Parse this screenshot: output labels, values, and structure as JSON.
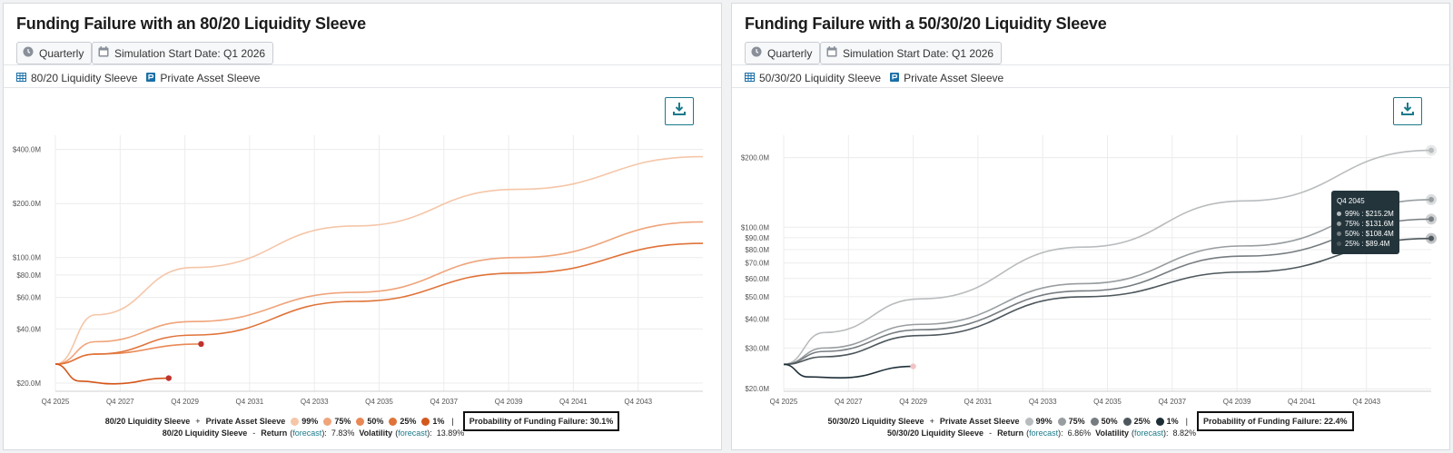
{
  "panels": [
    {
      "title": "Funding Failure with an 80/20 Liquidity Sleeve",
      "frequency": "Quarterly",
      "start_date": "Simulation Start Date: Q1 2026",
      "legend_items": [
        "80/20 Liquidity Sleeve",
        "Private Asset Sleeve"
      ],
      "bottom": {
        "sleeve": "80/20 Liquidity Sleeve",
        "plus": "+",
        "private": "Private Asset Sleeve",
        "pcts": [
          "99%",
          "75%",
          "50%",
          "25%",
          "1%"
        ],
        "pipe": "|",
        "prob": "Probability of Funding Failure: 30.1%",
        "dash": "-",
        "return_label": "Return",
        "forecast": "forecast",
        "return_value": "7.83%",
        "vol_label": "Volatility",
        "vol_value": "13.89%"
      },
      "colors": [
        "#f5c6a8",
        "#efa47a",
        "#e98855",
        "#e07339",
        "#d4571c"
      ],
      "dot_color": "#c0332d"
    },
    {
      "title": "Funding Failure with a 50/30/20 Liquidity Sleeve",
      "frequency": "Quarterly",
      "start_date": "Simulation Start Date: Q1 2026",
      "legend_items": [
        "50/30/20 Liquidity Sleeve",
        "Private Asset Sleeve"
      ],
      "bottom": {
        "sleeve": "50/30/20 Liquidity Sleeve",
        "plus": "+",
        "private": "Private Asset Sleeve",
        "pcts": [
          "99%",
          "75%",
          "50%",
          "25%",
          "1%"
        ],
        "pipe": "|",
        "prob": "Probability of Funding Failure: 22.4%",
        "dash": "-",
        "return_label": "Return",
        "forecast": "forecast",
        "return_value": "6.86%",
        "vol_label": "Volatility",
        "vol_value": "8.82%"
      },
      "colors": [
        "#b9bcbe",
        "#989da0",
        "#767c80",
        "#4d575c",
        "#1f2f38"
      ],
      "dot_color": "#f2c3c6",
      "tooltip": {
        "title": "Q4 2045",
        "rows": [
          "99% : $215.2M",
          "75% : $131.6M",
          "50% : $108.4M",
          "25% : $89.4M"
        ]
      }
    }
  ],
  "chart_data": [
    {
      "type": "line",
      "title": "Funding Failure with an 80/20 Liquidity Sleeve",
      "x_ticks": [
        "Q4 2025",
        "Q4 2027",
        "Q4 2029",
        "Q4 2031",
        "Q4 2033",
        "Q4 2035",
        "Q4 2037",
        "Q4 2039",
        "Q4 2041",
        "Q4 2043"
      ],
      "y_scale": "log",
      "y_ticks": [
        "$20.0M",
        "$40.0M",
        "$60.0M",
        "$80.0M",
        "$100.0M",
        "$200.0M",
        "$400.0M"
      ],
      "y_tick_values": [
        20,
        40,
        60,
        80,
        100,
        200,
        400
      ],
      "ylim": [
        18,
        480
      ],
      "series": [
        {
          "name": "99%",
          "x": [
            2025.75,
            2027,
            2030,
            2035,
            2040,
            2045.75
          ],
          "values": [
            25.5,
            48,
            88,
            150,
            240,
            365
          ]
        },
        {
          "name": "75%",
          "x": [
            2025.75,
            2027,
            2030,
            2035,
            2040,
            2045.75
          ],
          "values": [
            25.5,
            34,
            44,
            64,
            100,
            158
          ]
        },
        {
          "name": "50%",
          "x": [
            2025.75,
            2027,
            2030.25
          ],
          "values": [
            25.5,
            29,
            33
          ]
        },
        {
          "name": "25%",
          "x": [
            2025.75,
            2027,
            2030,
            2035,
            2040,
            2045.75
          ],
          "values": [
            25.5,
            29,
            37,
            57,
            82,
            120
          ]
        },
        {
          "name": "1%",
          "x": [
            2025.75,
            2026.5,
            2027.5,
            2029.25
          ],
          "values": [
            25.5,
            20.5,
            19.8,
            21.3
          ]
        }
      ],
      "failure_points": [
        {
          "x": 2030.25,
          "y": 33
        },
        {
          "x": 2029.25,
          "y": 21.3
        }
      ]
    },
    {
      "type": "line",
      "title": "Funding Failure with a 50/30/20 Liquidity Sleeve",
      "x_ticks": [
        "Q4 2025",
        "Q4 2027",
        "Q4 2029",
        "Q4 2031",
        "Q4 2033",
        "Q4 2035",
        "Q4 2037",
        "Q4 2039",
        "Q4 2041",
        "Q4 2043"
      ],
      "y_scale": "log",
      "y_ticks": [
        "$20.0M",
        "$30.0M",
        "$40.0M",
        "$50.0M",
        "$60.0M",
        "$70.0M",
        "$80.0M",
        "$90.0M",
        "$100.0M",
        "$200.0M"
      ],
      "y_tick_values": [
        20,
        30,
        40,
        50,
        60,
        70,
        80,
        90,
        100,
        200
      ],
      "ylim": [
        19.5,
        250
      ],
      "series": [
        {
          "name": "99%",
          "x": [
            2025.75,
            2027,
            2030,
            2035,
            2040,
            2045.75
          ],
          "values": [
            25.5,
            35,
            49,
            82,
            130,
            215.2
          ]
        },
        {
          "name": "75%",
          "x": [
            2025.75,
            2027,
            2030,
            2035,
            2040,
            2045.75
          ],
          "values": [
            25.5,
            30,
            38,
            57,
            83,
            131.6
          ]
        },
        {
          "name": "50%",
          "x": [
            2025.75,
            2027,
            2030,
            2035,
            2040,
            2045.75
          ],
          "values": [
            25.5,
            29,
            36,
            53,
            75,
            108.4
          ]
        },
        {
          "name": "25%",
          "x": [
            2025.75,
            2027,
            2030,
            2035,
            2040,
            2045.75
          ],
          "values": [
            25.5,
            27.5,
            34,
            50,
            64,
            89.4
          ]
        },
        {
          "name": "1%",
          "x": [
            2025.75,
            2026.5,
            2027.5,
            2029.75
          ],
          "values": [
            25.5,
            22.5,
            22.3,
            25
          ]
        }
      ],
      "failure_points": [
        {
          "x": 2029.75,
          "y": 25
        }
      ]
    }
  ]
}
